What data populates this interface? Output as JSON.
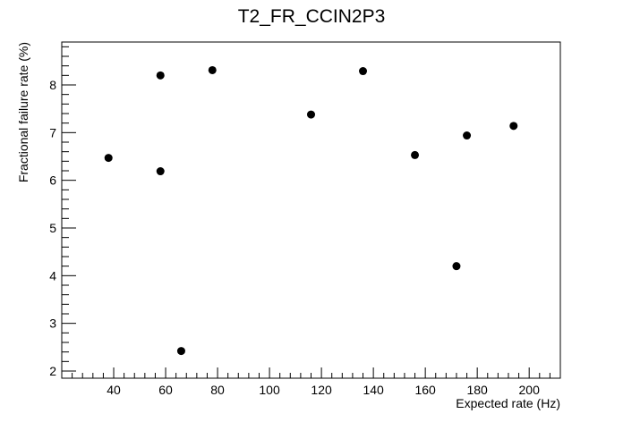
{
  "chart_data": {
    "type": "scatter",
    "title": "T2_FR_CCIN2P3",
    "xlabel": "Expected rate (Hz)",
    "ylabel": "Fractional failure rate (%)",
    "xlim": [
      20,
      212
    ],
    "ylim": [
      1.85,
      8.9
    ],
    "x_ticks": [
      40,
      60,
      80,
      100,
      120,
      140,
      160,
      180,
      200
    ],
    "y_ticks": [
      2,
      3,
      4,
      5,
      6,
      7,
      8
    ],
    "grid": false,
    "marker_color": "#000000",
    "points": [
      {
        "x": 38,
        "y": 6.47
      },
      {
        "x": 58,
        "y": 8.2
      },
      {
        "x": 58,
        "y": 6.19
      },
      {
        "x": 66,
        "y": 2.42
      },
      {
        "x": 78,
        "y": 8.31
      },
      {
        "x": 116,
        "y": 7.38
      },
      {
        "x": 136,
        "y": 8.29
      },
      {
        "x": 156,
        "y": 6.53
      },
      {
        "x": 172,
        "y": 4.2
      },
      {
        "x": 176,
        "y": 6.94
      },
      {
        "x": 194,
        "y": 7.14
      }
    ]
  }
}
